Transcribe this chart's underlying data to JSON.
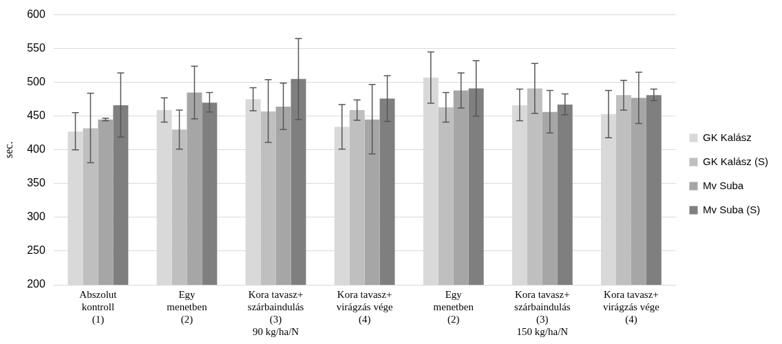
{
  "chart_data": {
    "type": "bar",
    "ylabel": "sec.",
    "categories": [
      "Abszolut\nkontroll\n(1)",
      "Egy\nmenetben\n(2)",
      "Kora tavasz+\nszárbaindulás\n(3)\n90 kg/ha/N",
      "Kora tavasz+\nvirágzás vége\n(4)",
      "Egy\nmenetben\n(2)",
      "Kora tavasz+\nszárbaindulás\n(3)\n150 kg/ha/N",
      "Kora tavasz+\nvirágzás vége\n(4)"
    ],
    "series": [
      {
        "name": "GK Kalász",
        "color": "#d9d9d9",
        "values": [
          427,
          459,
          475,
          434,
          507,
          466,
          453
        ],
        "errors": [
          [
            400,
            455
          ],
          [
            441,
            477
          ],
          [
            458,
            492
          ],
          [
            401,
            467
          ],
          [
            469,
            545
          ],
          [
            443,
            490
          ],
          [
            418,
            488
          ]
        ]
      },
      {
        "name": "GK Kalász (S)",
        "color": "#bfbfbf",
        "values": [
          432,
          430,
          457,
          459,
          463,
          491,
          481
        ],
        "errors": [
          [
            381,
            484
          ],
          [
            401,
            459
          ],
          [
            411,
            504
          ],
          [
            444,
            474
          ],
          [
            441,
            485
          ],
          [
            454,
            528
          ],
          [
            459,
            503
          ]
        ]
      },
      {
        "name": "Mv Suba",
        "color": "#a6a6a6",
        "values": [
          445,
          485,
          464,
          445,
          488,
          456,
          477
        ],
        "errors": [
          [
            443,
            447
          ],
          [
            446,
            524
          ],
          [
            430,
            499
          ],
          [
            394,
            497
          ],
          [
            462,
            514
          ],
          [
            425,
            488
          ],
          [
            439,
            515
          ]
        ]
      },
      {
        "name": "Mv Suba (S)",
        "color": "#7f7f7f",
        "values": [
          466,
          470,
          505,
          476,
          491,
          467,
          481
        ],
        "errors": [
          [
            419,
            514
          ],
          [
            456,
            485
          ],
          [
            445,
            565
          ],
          [
            442,
            510
          ],
          [
            450,
            532
          ],
          [
            452,
            483
          ],
          [
            473,
            490
          ]
        ]
      }
    ],
    "ylim": [
      200,
      600
    ],
    "yticks": [
      200,
      250,
      300,
      350,
      400,
      450,
      500,
      550,
      600
    ],
    "grid": "y",
    "legend": "right"
  }
}
